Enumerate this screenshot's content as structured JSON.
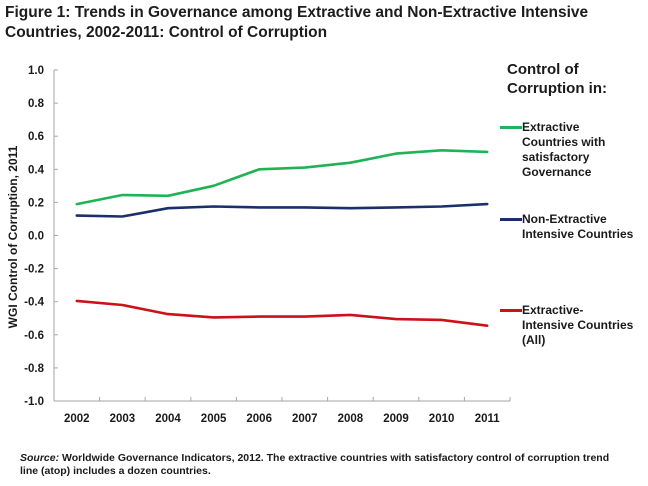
{
  "figure": {
    "title_line1": "Figure 1: Trends in Governance among Extractive and Non-Extractive Intensive",
    "title_line2": "Countries, 2002-2011:  Control of Corruption"
  },
  "legend": {
    "title_line1": "Control of",
    "title_line2": "Corruption in:",
    "items": [
      {
        "lines": [
          "Extractive",
          "Countries with",
          "satisfactory",
          "Governance"
        ]
      },
      {
        "lines": [
          "Non-Extractive",
          "Intensive Countries"
        ]
      },
      {
        "lines": [
          "Extractive-",
          "Intensive Countries",
          "(All)"
        ]
      }
    ]
  },
  "source": {
    "label": "Source:",
    "text": " Worldwide Governance Indicators, 2012. The extractive countries with satisfactory control of corruption trend line (atop) includes a dozen countries."
  },
  "chart_data": {
    "type": "line",
    "title": "Figure 1: Trends in Governance among Extractive and Non-Extractive Intensive Countries, 2002-2011:  Control of Corruption",
    "xlabel": "",
    "ylabel": "WGI Control of Corruption, 2011",
    "categories": [
      "2002",
      "2003",
      "2004",
      "2005",
      "2006",
      "2007",
      "2008",
      "2009",
      "2010",
      "2011"
    ],
    "ylim": [
      -1.0,
      1.0
    ],
    "yticks": [
      "1.0",
      "0.8",
      "0.6",
      "0.4",
      "0.2",
      "0.0",
      "-0.2",
      "-0.4",
      "-0.6",
      "-0.8",
      "-1.0"
    ],
    "ytick_values": [
      1.0,
      0.8,
      0.6,
      0.4,
      0.2,
      0.0,
      -0.2,
      -0.4,
      -0.6,
      -0.8,
      -1.0
    ],
    "grid": false,
    "legend_position": "right",
    "series": [
      {
        "name": "Extractive Countries with satisfactory Governance",
        "color": "#1FB356",
        "values": [
          0.19,
          0.245,
          0.24,
          0.3,
          0.4,
          0.41,
          0.44,
          0.495,
          0.515,
          0.505
        ]
      },
      {
        "name": "Non-Extractive Intensive Countries",
        "color": "#1B2F6B",
        "values": [
          0.12,
          0.115,
          0.165,
          0.175,
          0.17,
          0.17,
          0.165,
          0.17,
          0.175,
          0.19
        ]
      },
      {
        "name": "Extractive-Intensive Countries (All)",
        "color": "#CC1218",
        "values": [
          -0.395,
          -0.42,
          -0.475,
          -0.495,
          -0.49,
          -0.49,
          -0.48,
          -0.505,
          -0.51,
          -0.545
        ]
      }
    ]
  }
}
